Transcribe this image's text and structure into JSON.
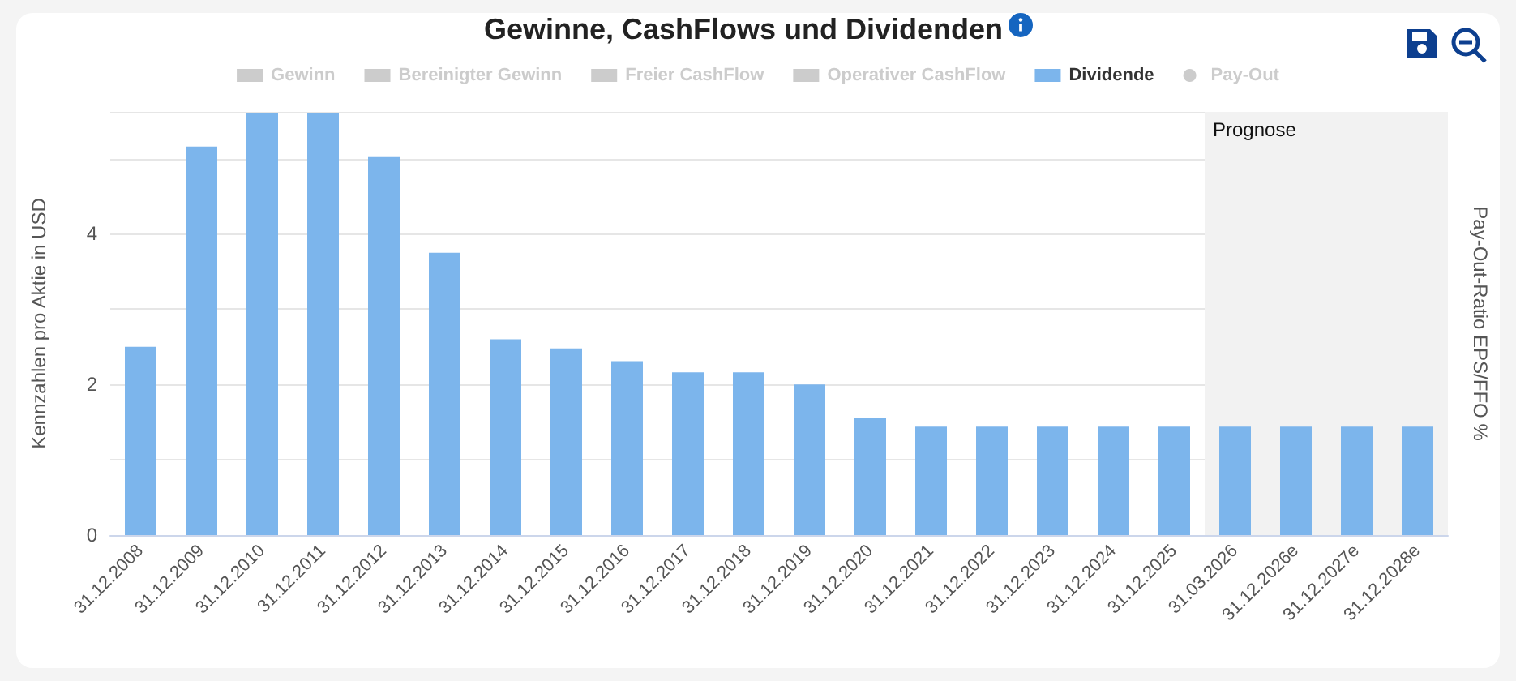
{
  "chart_data": {
    "type": "bar",
    "title": "Gewinne, CashFlows und Dividenden",
    "ylabel": "Kennzahlen pro Aktie in USD",
    "y2label": "Pay-Out-Ratio EPS/FFO %",
    "categories": [
      "31.12.2008",
      "31.12.2009",
      "31.12.2010",
      "31.12.2011",
      "31.12.2012",
      "31.12.2013",
      "31.12.2014",
      "31.12.2015",
      "31.12.2016",
      "31.12.2017",
      "31.12.2018",
      "31.12.2019",
      "31.12.2020",
      "31.12.2021",
      "31.12.2022",
      "31.12.2023",
      "31.12.2024",
      "31.12.2025",
      "31.03.2026",
      "31.12.2026e",
      "31.12.2027e",
      "31.12.2028e"
    ],
    "series": [
      {
        "name": "Gewinn",
        "color": "#cccccc",
        "values": [
          null,
          null,
          null,
          null,
          null,
          null,
          null,
          null,
          null,
          null,
          null,
          null,
          null,
          null,
          null,
          null,
          null,
          null,
          null,
          null,
          null,
          null
        ]
      },
      {
        "name": "Bereinigter Gewinn",
        "color": "#cccccc",
        "values": [
          null,
          null,
          null,
          null,
          null,
          null,
          null,
          null,
          null,
          null,
          null,
          null,
          null,
          null,
          null,
          null,
          null,
          null,
          null,
          null,
          null,
          null
        ]
      },
      {
        "name": "Freier CashFlow",
        "color": "#cccccc",
        "values": [
          null,
          null,
          null,
          null,
          null,
          null,
          null,
          null,
          null,
          null,
          null,
          null,
          null,
          null,
          null,
          null,
          null,
          null,
          null,
          null,
          null,
          null
        ]
      },
      {
        "name": "Operativer CashFlow",
        "color": "#cccccc",
        "values": [
          null,
          null,
          null,
          null,
          null,
          null,
          null,
          null,
          null,
          null,
          null,
          null,
          null,
          null,
          null,
          null,
          null,
          null,
          null,
          null,
          null,
          null
        ]
      },
      {
        "name": "Dividende",
        "color": "#7cb5ec",
        "values": [
          2.5,
          5.16,
          5.6,
          5.6,
          5.02,
          3.75,
          2.6,
          2.48,
          2.31,
          2.16,
          2.16,
          2.0,
          1.55,
          1.44,
          1.44,
          1.44,
          1.44,
          1.44,
          1.44,
          1.44,
          1.44,
          1.44
        ]
      },
      {
        "name": "Pay-Out",
        "type": "line",
        "color": "#cccccc",
        "values": [
          null,
          null,
          null,
          null,
          null,
          null,
          null,
          null,
          null,
          null,
          null,
          null,
          null,
          null,
          null,
          null,
          null,
          null,
          null,
          null,
          null,
          null
        ]
      }
    ],
    "ylim": [
      0,
      5.62
    ],
    "yticks": [
      0,
      {
        "value": 1,
        "label": null
      },
      2,
      {
        "value": 3,
        "label": null
      },
      4,
      {
        "value": 5,
        "label": null
      }
    ],
    "bands": [
      {
        "axis": "x",
        "from": "31.03.2026",
        "to": "31.12.2028e",
        "label": "Prognose",
        "color": "#f2f2f2"
      }
    ],
    "grid": "y",
    "legend": "top",
    "marker": "circle"
  }
}
